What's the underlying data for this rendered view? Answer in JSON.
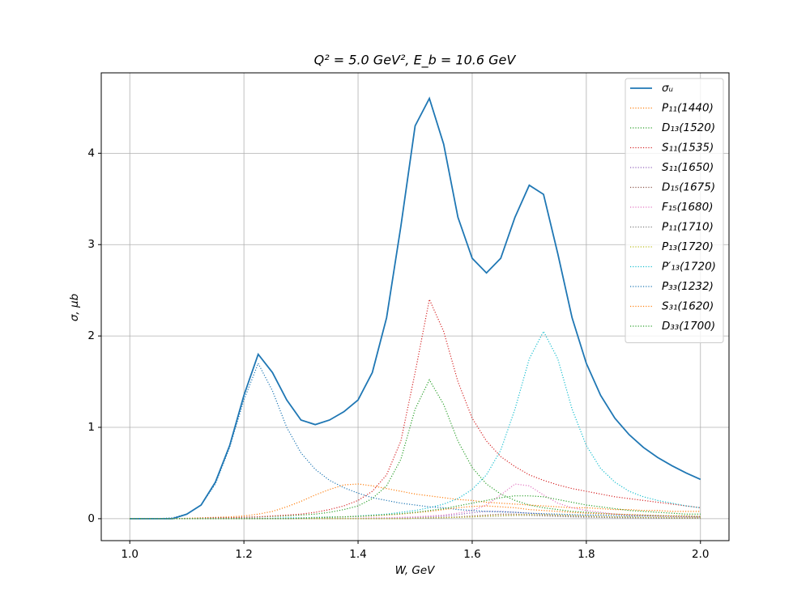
{
  "chart_data": {
    "type": "line",
    "title": "Q² = 5.0 GeV²,  E_b = 10.6 GeV",
    "x_label": "W, GeV",
    "y_label": "σ, μb",
    "x": [
      1.0,
      1.025,
      1.05,
      1.075,
      1.1,
      1.125,
      1.15,
      1.175,
      1.2,
      1.225,
      1.25,
      1.275,
      1.3,
      1.325,
      1.35,
      1.375,
      1.4,
      1.425,
      1.45,
      1.475,
      1.5,
      1.525,
      1.55,
      1.575,
      1.6,
      1.625,
      1.65,
      1.675,
      1.7,
      1.725,
      1.75,
      1.775,
      1.8,
      1.825,
      1.85,
      1.875,
      1.9,
      1.925,
      1.95,
      1.975,
      2.0
    ],
    "series": [
      {
        "name": "σᵤ",
        "color": "#1f77b4",
        "style": "solid",
        "values": [
          0,
          0,
          0,
          0,
          0.05,
          0.15,
          0.4,
          0.8,
          1.35,
          1.8,
          1.6,
          1.3,
          1.08,
          1.03,
          1.08,
          1.17,
          1.3,
          1.6,
          2.2,
          3.2,
          4.3,
          4.6,
          4.1,
          3.3,
          2.85,
          2.69,
          2.85,
          3.3,
          3.65,
          3.55,
          2.9,
          2.2,
          1.7,
          1.35,
          1.1,
          0.92,
          0.78,
          0.67,
          0.58,
          0.5,
          0.43
        ]
      },
      {
        "name": "P₁₁(1440)",
        "color": "#ff7f0e",
        "style": "dotted",
        "values": [
          0,
          0,
          0,
          0,
          0.005,
          0.01,
          0.015,
          0.02,
          0.03,
          0.05,
          0.08,
          0.13,
          0.19,
          0.26,
          0.32,
          0.37,
          0.38,
          0.36,
          0.33,
          0.3,
          0.27,
          0.25,
          0.23,
          0.21,
          0.2,
          0.18,
          0.17,
          0.16,
          0.15,
          0.14,
          0.13,
          0.12,
          0.12,
          0.11,
          0.1,
          0.1,
          0.09,
          0.09,
          0.08,
          0.08,
          0.08
        ]
      },
      {
        "name": "D₁₃(1520)",
        "color": "#2ca02c",
        "style": "dotted",
        "values": [
          0,
          0,
          0,
          0,
          0,
          0.005,
          0.01,
          0.01,
          0.015,
          0.02,
          0.025,
          0.03,
          0.04,
          0.05,
          0.07,
          0.1,
          0.14,
          0.22,
          0.36,
          0.65,
          1.2,
          1.52,
          1.25,
          0.85,
          0.56,
          0.38,
          0.27,
          0.2,
          0.15,
          0.12,
          0.1,
          0.08,
          0.07,
          0.06,
          0.05,
          0.045,
          0.04,
          0.035,
          0.03,
          0.03,
          0.025
        ]
      },
      {
        "name": "S₁₁(1535)",
        "color": "#d62728",
        "style": "dotted",
        "values": [
          0,
          0,
          0,
          0,
          0,
          0.005,
          0.01,
          0.01,
          0.015,
          0.02,
          0.03,
          0.04,
          0.05,
          0.07,
          0.1,
          0.14,
          0.2,
          0.3,
          0.48,
          0.85,
          1.6,
          2.4,
          2.05,
          1.5,
          1.1,
          0.85,
          0.68,
          0.57,
          0.48,
          0.42,
          0.37,
          0.33,
          0.3,
          0.27,
          0.24,
          0.22,
          0.2,
          0.18,
          0.16,
          0.14,
          0.12
        ]
      },
      {
        "name": "S₁₁(1650)",
        "color": "#9467bd",
        "style": "dotted",
        "values": [
          0,
          0,
          0,
          0,
          0,
          0,
          0,
          0,
          0,
          0,
          0,
          0,
          0,
          0,
          0,
          0,
          0,
          0,
          0.005,
          0.01,
          0.015,
          0.02,
          0.03,
          0.045,
          0.065,
          0.08,
          0.08,
          0.07,
          0.06,
          0.05,
          0.04,
          0.035,
          0.03,
          0.025,
          0.02,
          0.02,
          0.015,
          0.015,
          0.01,
          0.01,
          0.01
        ]
      },
      {
        "name": "D₁₅(1675)",
        "color": "#8c564b",
        "style": "dotted",
        "values": [
          0,
          0,
          0,
          0,
          0,
          0,
          0,
          0,
          0,
          0,
          0,
          0,
          0,
          0,
          0,
          0,
          0,
          0,
          0,
          0,
          0.005,
          0.01,
          0.015,
          0.02,
          0.03,
          0.04,
          0.05,
          0.05,
          0.045,
          0.04,
          0.03,
          0.025,
          0.02,
          0.015,
          0.015,
          0.01,
          0.01,
          0.01,
          0.005,
          0.005,
          0.005
        ]
      },
      {
        "name": "F₁₅(1680)",
        "color": "#e377c2",
        "style": "dotted",
        "values": [
          0,
          0,
          0,
          0,
          0,
          0,
          0,
          0,
          0,
          0,
          0,
          0,
          0,
          0,
          0,
          0,
          0.005,
          0.01,
          0.01,
          0.015,
          0.02,
          0.03,
          0.04,
          0.06,
          0.09,
          0.15,
          0.26,
          0.38,
          0.36,
          0.26,
          0.17,
          0.12,
          0.09,
          0.07,
          0.05,
          0.04,
          0.035,
          0.03,
          0.025,
          0.02,
          0.02
        ]
      },
      {
        "name": "P₁₁(1710)",
        "color": "#7f7f7f",
        "style": "dotted",
        "values": [
          0,
          0,
          0,
          0,
          0,
          0,
          0,
          0,
          0,
          0,
          0,
          0,
          0,
          0,
          0,
          0,
          0,
          0,
          0,
          0,
          0.005,
          0.005,
          0.01,
          0.015,
          0.02,
          0.025,
          0.03,
          0.035,
          0.035,
          0.03,
          0.025,
          0.02,
          0.015,
          0.015,
          0.01,
          0.01,
          0.01,
          0.005,
          0.005,
          0.005,
          0.005
        ]
      },
      {
        "name": "P₁₃(1720)",
        "color": "#bcbd22",
        "style": "dotted",
        "values": [
          0,
          0,
          0,
          0,
          0,
          0,
          0,
          0,
          0,
          0,
          0,
          0,
          0,
          0,
          0,
          0,
          0,
          0,
          0,
          0,
          0.005,
          0.01,
          0.01,
          0.015,
          0.02,
          0.03,
          0.035,
          0.04,
          0.045,
          0.045,
          0.04,
          0.035,
          0.03,
          0.025,
          0.02,
          0.02,
          0.015,
          0.015,
          0.01,
          0.01,
          0.01
        ]
      },
      {
        "name": "P′₁₃(1720)",
        "color": "#17becf",
        "style": "dotted",
        "values": [
          0,
          0,
          0,
          0,
          0,
          0,
          0,
          0,
          0.005,
          0.005,
          0.005,
          0.01,
          0.01,
          0.015,
          0.02,
          0.02,
          0.03,
          0.04,
          0.05,
          0.07,
          0.09,
          0.12,
          0.16,
          0.22,
          0.32,
          0.48,
          0.75,
          1.2,
          1.75,
          2.05,
          1.75,
          1.2,
          0.8,
          0.55,
          0.4,
          0.3,
          0.24,
          0.2,
          0.17,
          0.14,
          0.12
        ]
      },
      {
        "name": "P₃₃(1232)",
        "color": "#1f77b4",
        "style": "dotted",
        "values": [
          0,
          0,
          0,
          0.01,
          0.05,
          0.15,
          0.38,
          0.78,
          1.3,
          1.7,
          1.4,
          1.0,
          0.72,
          0.54,
          0.42,
          0.34,
          0.28,
          0.23,
          0.2,
          0.17,
          0.15,
          0.13,
          0.12,
          0.1,
          0.09,
          0.08,
          0.075,
          0.07,
          0.06,
          0.055,
          0.05,
          0.045,
          0.04,
          0.04,
          0.035,
          0.03,
          0.03,
          0.03,
          0.025,
          0.025,
          0.02
        ]
      },
      {
        "name": "S₃₁(1620)",
        "color": "#ff7f0e",
        "style": "dotted",
        "values": [
          0,
          0,
          0,
          0,
          0,
          0,
          0,
          0,
          0,
          0,
          0,
          0,
          0.005,
          0.01,
          0.015,
          0.02,
          0.025,
          0.03,
          0.04,
          0.05,
          0.065,
          0.08,
          0.1,
          0.12,
          0.135,
          0.14,
          0.13,
          0.12,
          0.1,
          0.09,
          0.08,
          0.07,
          0.06,
          0.055,
          0.05,
          0.045,
          0.04,
          0.035,
          0.03,
          0.03,
          0.025
        ]
      },
      {
        "name": "D₃₃(1700)",
        "color": "#2ca02c",
        "style": "dotted",
        "values": [
          0,
          0,
          0,
          0,
          0,
          0,
          0,
          0,
          0,
          0,
          0,
          0,
          0.005,
          0.01,
          0.015,
          0.02,
          0.025,
          0.035,
          0.045,
          0.055,
          0.07,
          0.09,
          0.11,
          0.14,
          0.17,
          0.2,
          0.23,
          0.25,
          0.25,
          0.24,
          0.21,
          0.18,
          0.15,
          0.13,
          0.11,
          0.09,
          0.08,
          0.07,
          0.06,
          0.05,
          0.05
        ]
      }
    ],
    "xlim": [
      0.95,
      2.05
    ],
    "ylim": [
      -0.24,
      4.88
    ],
    "xticks": [
      {
        "value": 1,
        "label": "1.0"
      },
      1.2,
      1.4,
      1.6,
      1.8,
      {
        "value": 2,
        "label": "2.0"
      }
    ],
    "yticks": [
      0,
      1,
      2,
      3,
      4
    ],
    "grid": true,
    "legend": "upper-right"
  }
}
